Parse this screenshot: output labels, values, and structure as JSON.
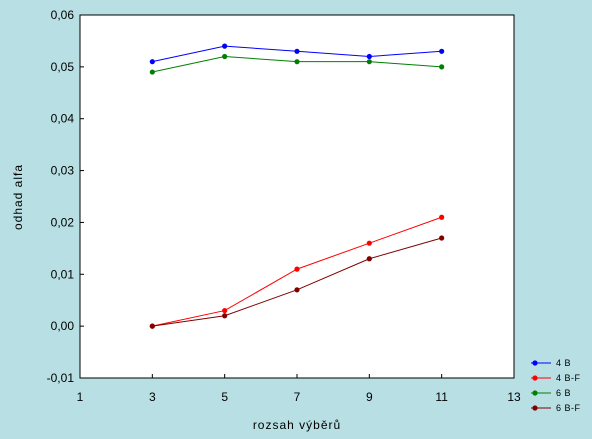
{
  "chart_data": {
    "type": "line",
    "title": "",
    "xlabel": "rozsah výběrů",
    "ylabel": "odhad alfa",
    "xlim": [
      1,
      13
    ],
    "ylim": [
      -0.01,
      0.06
    ],
    "x_ticks": [
      1,
      3,
      5,
      7,
      9,
      11,
      13
    ],
    "y_ticks": [
      -0.01,
      0.0,
      0.01,
      0.02,
      0.03,
      0.04,
      0.05,
      0.06
    ],
    "y_tick_labels": [
      "-0,01",
      "0,00",
      "0,01",
      "0,02",
      "0,03",
      "0,04",
      "0,05",
      "0,06"
    ],
    "x_tick_labels": [
      "1",
      "3",
      "5",
      "7",
      "9",
      "11",
      "13"
    ],
    "grid": false,
    "legend_position": "bottom-right",
    "x": [
      3,
      5,
      7,
      9,
      11
    ],
    "series": [
      {
        "name": "4 B",
        "color": "#0000ff",
        "values": [
          0.051,
          0.054,
          0.053,
          0.052,
          0.053
        ]
      },
      {
        "name": "4 B-F",
        "color": "#ff0000",
        "values": [
          0.0,
          0.003,
          0.011,
          0.016,
          0.021
        ]
      },
      {
        "name": "6 B",
        "color": "#008000",
        "values": [
          0.049,
          0.052,
          0.051,
          0.051,
          0.05
        ]
      },
      {
        "name": "6 B-F",
        "color": "#800000",
        "values": [
          0.0,
          0.002,
          0.007,
          0.013,
          0.017
        ]
      }
    ]
  }
}
